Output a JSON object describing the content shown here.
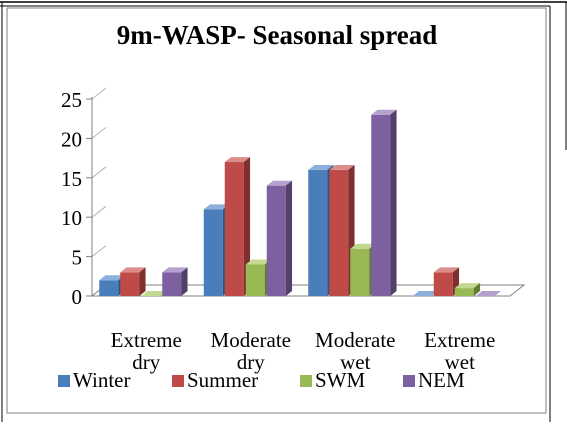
{
  "chart_data": {
    "type": "bar",
    "title": "9m-WASP- Seasonal spread",
    "categories": [
      [
        "Extreme",
        "dry"
      ],
      [
        "Moderate",
        "dry"
      ],
      [
        "Moderate",
        "wet"
      ],
      [
        "Extreme",
        "wet"
      ]
    ],
    "series": [
      {
        "name": "Winter",
        "values": [
          2,
          11,
          16,
          0
        ]
      },
      {
        "name": "Summer",
        "values": [
          3,
          17,
          16,
          3
        ]
      },
      {
        "name": "SWM",
        "values": [
          0,
          4,
          6,
          1
        ]
      },
      {
        "name": "NEM",
        "values": [
          3,
          14,
          23,
          0
        ]
      }
    ],
    "ylim": [
      0,
      25
    ],
    "yticks": [
      "0",
      "5",
      "10",
      "15",
      "20",
      "25"
    ],
    "legend_position": "bottom",
    "colors": {
      "Winter": {
        "front": "#4a7ebb",
        "side": "#2e5486",
        "top": "#8cb0db"
      },
      "Summer": {
        "front": "#be4b48",
        "side": "#7f2f2d",
        "top": "#dc8d8b"
      },
      "SWM": {
        "front": "#98b954",
        "side": "#637a33",
        "top": "#c3d891"
      },
      "NEM": {
        "front": "#7d60a0",
        "side": "#523f6a",
        "top": "#b4a1cd"
      }
    }
  }
}
